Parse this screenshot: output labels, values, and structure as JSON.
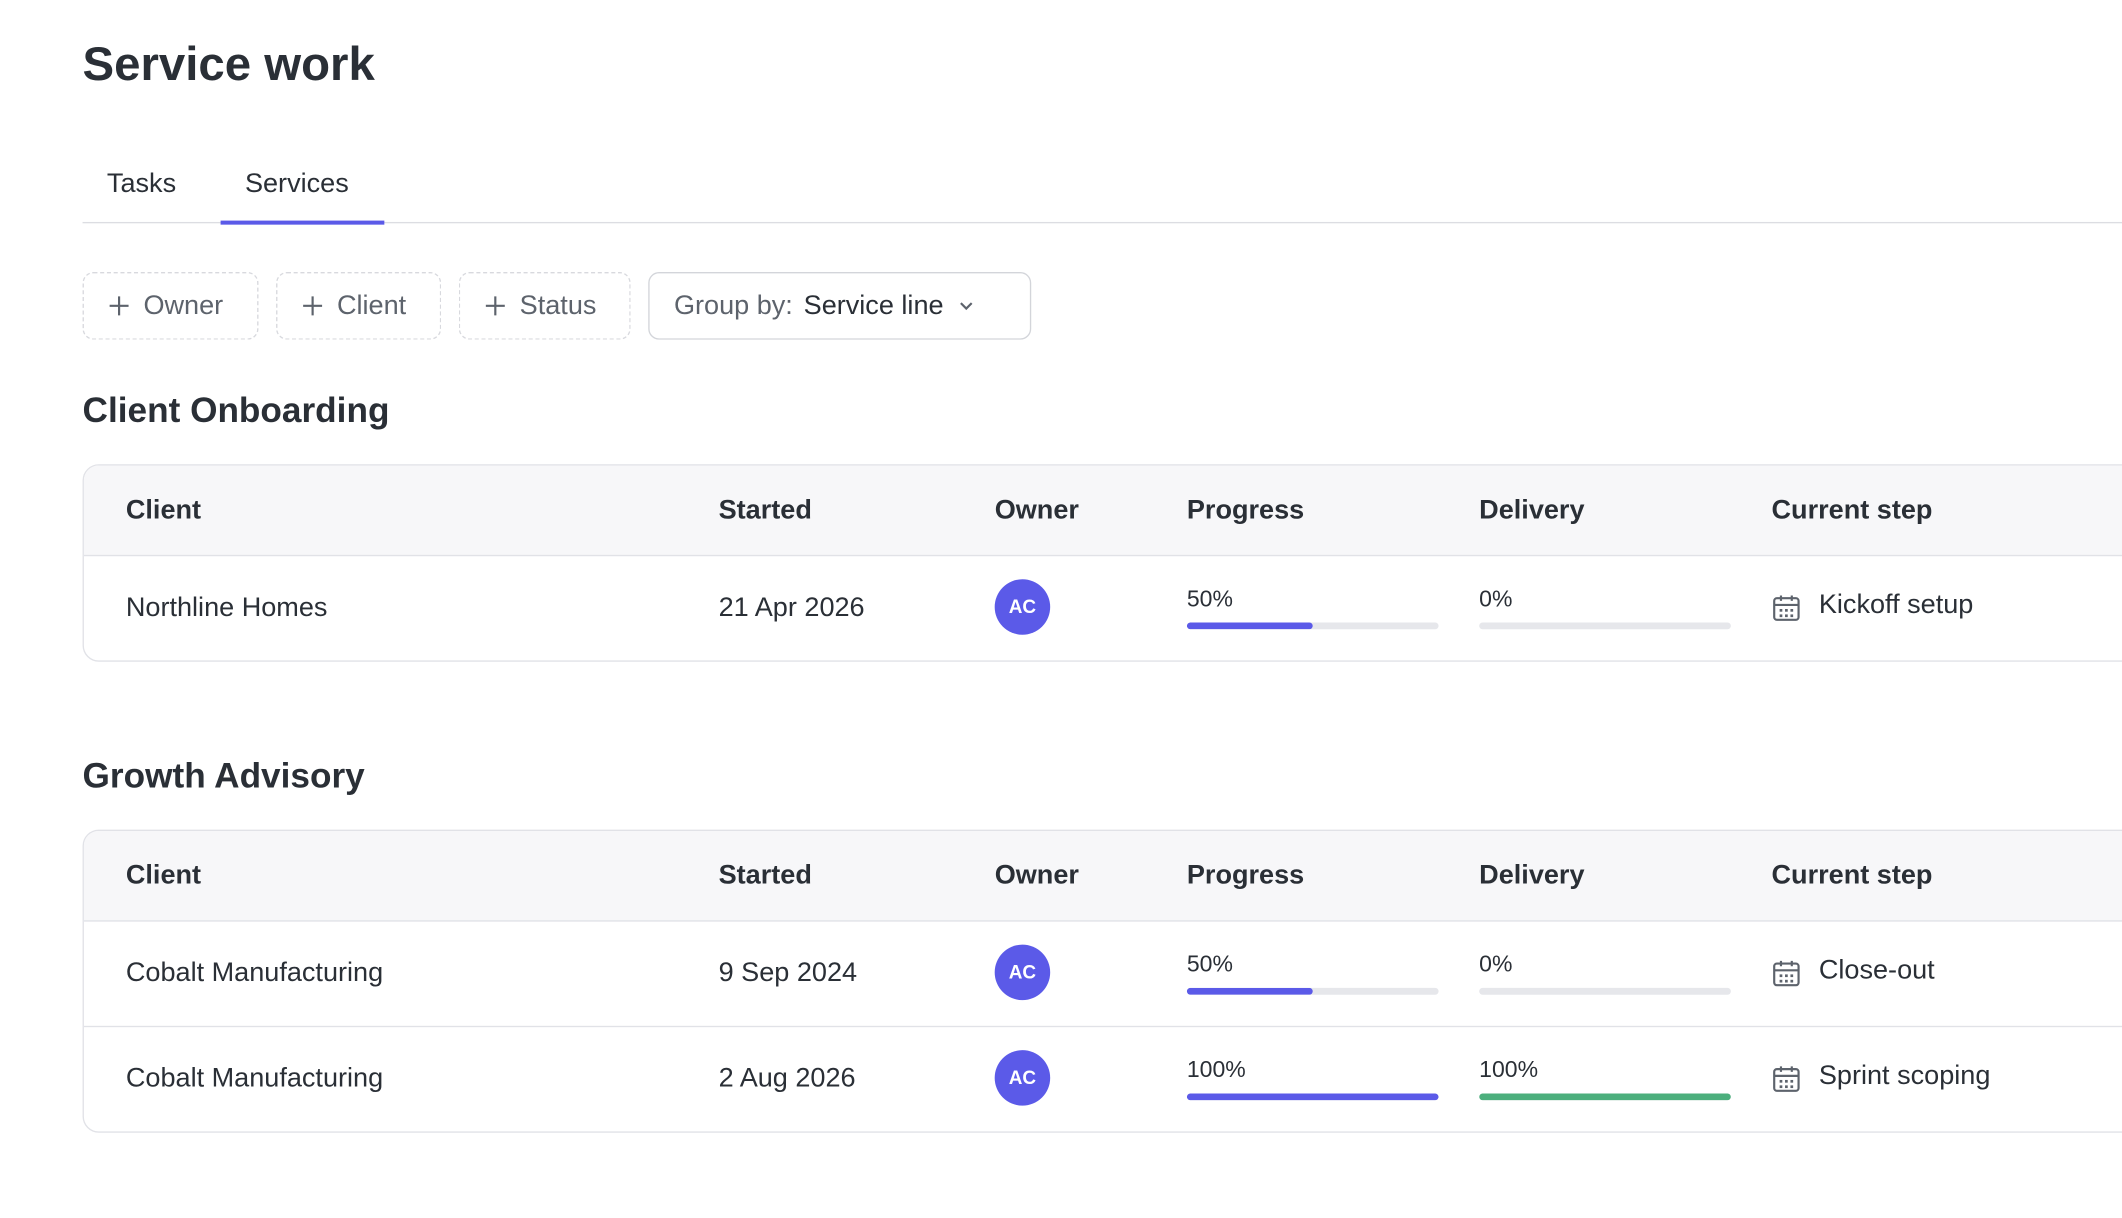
{
  "header": {
    "title": "Service work"
  },
  "tabs": [
    {
      "label": "Tasks",
      "active": false
    },
    {
      "label": "Services",
      "active": true
    }
  ],
  "filters": [
    "Owner",
    "Client",
    "Status"
  ],
  "group_by": {
    "label": "Group by:",
    "value": "Service line"
  },
  "progress_color": "#5b5ae8",
  "delivery_color": "#4caf7d",
  "sections": [
    {
      "title": "Client Onboarding",
      "columns": [
        "Client",
        "Started",
        "Owner",
        "Progress",
        "Delivery",
        "Current step"
      ],
      "rows": [
        {
          "client": "Northline Homes",
          "started": "21 Apr 2026",
          "owner": "AC",
          "progress": {
            "value": 50,
            "label": "50%"
          },
          "delivery": {
            "value": 0,
            "label": "0%"
          },
          "current_step": "Kickoff setup"
        }
      ]
    },
    {
      "title": "Growth Advisory",
      "columns": [
        "Client",
        "Started",
        "Owner",
        "Progress",
        "Delivery",
        "Current step"
      ],
      "rows": [
        {
          "client": "Cobalt Manufacturing",
          "started": "9 Sep 2024",
          "owner": "AC",
          "progress": {
            "value": 50,
            "label": "50%"
          },
          "delivery": {
            "value": 0,
            "label": "0%"
          },
          "current_step": "Close-out"
        },
        {
          "client": "Cobalt Manufacturing",
          "started": "2 Aug 2026",
          "owner": "AC",
          "progress": {
            "value": 100,
            "label": "100%"
          },
          "delivery": {
            "value": 100,
            "label": "100%"
          },
          "current_step": "Sprint scoping"
        }
      ]
    }
  ]
}
